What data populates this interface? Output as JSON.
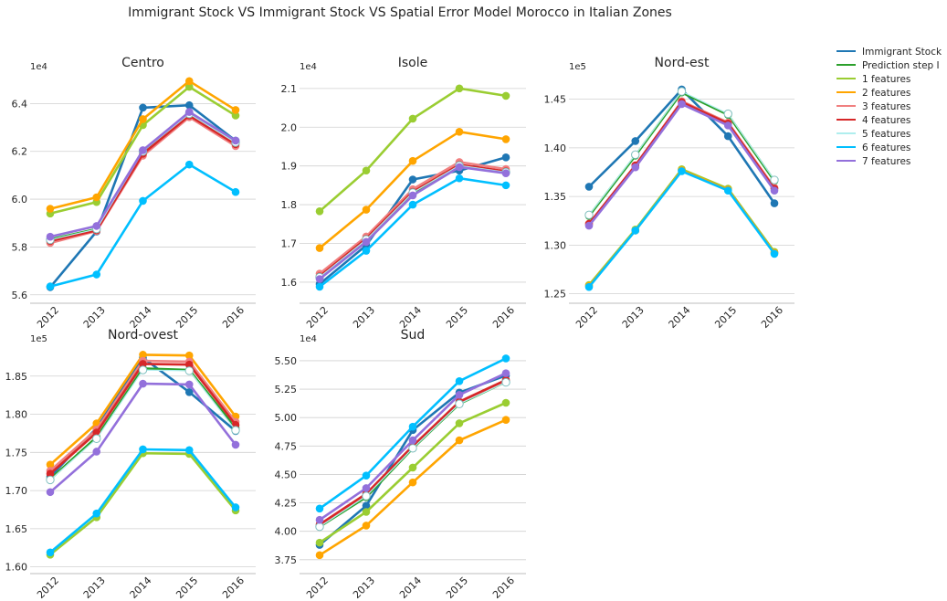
{
  "title": "Immigrant Stock VS Immigrant Stock VS Spatial Error Model Morocco in Italian Zones",
  "legend": {
    "placement": "outside-right",
    "entries": [
      {
        "label": "Immigrant Stock",
        "color": "#1f77b4"
      },
      {
        "label": "Prediction step I",
        "color": "#2ca02c"
      },
      {
        "label": "1 features",
        "color": "#9acd32"
      },
      {
        "label": "2 features",
        "color": "#ffa500"
      },
      {
        "label": "3 features",
        "color": "#f08080"
      },
      {
        "label": "4 features",
        "color": "#d62728"
      },
      {
        "label": "5 features",
        "color": "#afeeee"
      },
      {
        "label": "6 features",
        "color": "#00bfff"
      },
      {
        "label": "7 features",
        "color": "#9370db"
      }
    ]
  },
  "chart_data": [
    {
      "type": "line",
      "title": "Centro",
      "x": [
        "2012",
        "2013",
        "2014",
        "2015",
        "2016"
      ],
      "ylim": [
        5.58,
        6.52
      ],
      "yticks": [
        5.6,
        5.8,
        6.0,
        6.2,
        6.4
      ],
      "ytick_labels": [
        "5.6",
        "5.8",
        "6.0",
        "6.2",
        "6.4"
      ],
      "scale_label": "1e4",
      "grid": "horizontal",
      "series": [
        {
          "name": "Immigrant Stock",
          "color": "#1f77b4",
          "values": [
            5.632,
            5.865,
            6.383,
            6.393,
            6.245
          ]
        },
        {
          "name": "Prediction step I",
          "color": "#2ca02c",
          "values": [
            5.832,
            5.875,
            6.2,
            6.357,
            6.24
          ]
        },
        {
          "name": "1 features",
          "color": "#9acd32",
          "values": [
            5.94,
            5.988,
            6.31,
            6.47,
            6.35
          ]
        },
        {
          "name": "2 features",
          "color": "#ffa500",
          "values": [
            5.96,
            6.008,
            6.335,
            6.494,
            6.373
          ]
        },
        {
          "name": "3 features",
          "color": "#f08080",
          "values": [
            5.817,
            5.867,
            6.182,
            6.343,
            6.222
          ]
        },
        {
          "name": "4 features",
          "color": "#d62728",
          "values": [
            5.825,
            5.87,
            6.19,
            6.35,
            6.23
          ]
        },
        {
          "name": "5 features",
          "color": "#afeeee",
          "values": [
            5.83,
            5.875,
            6.2,
            6.357,
            6.237
          ]
        },
        {
          "name": "6 features",
          "color": "#00bfff",
          "values": [
            5.635,
            5.685,
            5.993,
            6.145,
            6.03
          ]
        },
        {
          "name": "7 features",
          "color": "#9370db",
          "values": [
            5.843,
            5.888,
            6.205,
            6.365,
            6.245
          ]
        }
      ]
    },
    {
      "type": "line",
      "title": "Isole",
      "x": [
        "2012",
        "2013",
        "2014",
        "2015",
        "2016"
      ],
      "ylim": [
        1.555,
        2.135
      ],
      "yticks": [
        1.6,
        1.7,
        1.8,
        1.9,
        2.0,
        2.1
      ],
      "ytick_labels": [
        "1.6",
        "1.7",
        "1.8",
        "1.9",
        "2.0",
        "2.1"
      ],
      "scale_label": "1e4",
      "grid": "horizontal",
      "series": [
        {
          "name": "Immigrant Stock",
          "color": "#1f77b4",
          "values": [
            1.595,
            1.695,
            1.865,
            1.888,
            1.922
          ]
        },
        {
          "name": "Prediction step I",
          "color": "#2ca02c",
          "values": [
            1.612,
            1.712,
            1.83,
            1.9,
            1.885
          ]
        },
        {
          "name": "1 features",
          "color": "#9acd32",
          "values": [
            1.783,
            1.888,
            2.022,
            2.1,
            2.081
          ]
        },
        {
          "name": "2 features",
          "color": "#ffa500",
          "values": [
            1.688,
            1.787,
            1.913,
            1.988,
            1.969
          ]
        },
        {
          "name": "3 features",
          "color": "#f08080",
          "values": [
            1.622,
            1.718,
            1.84,
            1.91,
            1.892
          ]
        },
        {
          "name": "4 features",
          "color": "#d62728",
          "values": [
            1.615,
            1.712,
            1.833,
            1.903,
            1.886
          ]
        },
        {
          "name": "5 features",
          "color": "#afeeee",
          "values": [
            1.613,
            1.71,
            1.831,
            1.901,
            1.884
          ]
        },
        {
          "name": "6 features",
          "color": "#00bfff",
          "values": [
            1.588,
            1.681,
            1.8,
            1.868,
            1.85
          ]
        },
        {
          "name": "7 features",
          "color": "#9370db",
          "values": [
            1.608,
            1.704,
            1.824,
            1.897,
            1.881
          ]
        }
      ]
    },
    {
      "type": "line",
      "title": "Nord-est",
      "x": [
        "2012",
        "2013",
        "2014",
        "2015",
        "2016"
      ],
      "ylim": [
        1.244,
        1.475
      ],
      "yticks": [
        1.25,
        1.3,
        1.35,
        1.4,
        1.45
      ],
      "ytick_labels": [
        "1.25",
        "1.30",
        "1.35",
        "1.40",
        "1.45"
      ],
      "scale_label": "1e5",
      "grid": "horizontal",
      "series": [
        {
          "name": "Immigrant Stock",
          "color": "#1f77b4",
          "values": [
            1.36,
            1.407,
            1.46,
            1.412,
            1.343
          ]
        },
        {
          "name": "Prediction step I",
          "color": "#2ca02c",
          "values": [
            1.33,
            1.392,
            1.457,
            1.434,
            1.366
          ]
        },
        {
          "name": "1 features",
          "color": "#9acd32",
          "values": [
            1.259,
            1.316,
            1.378,
            1.358,
            1.293
          ]
        },
        {
          "name": "2 features",
          "color": "#ffa500",
          "values": [
            1.258,
            1.315,
            1.377,
            1.357,
            1.292
          ]
        },
        {
          "name": "3 features",
          "color": "#f08080",
          "values": [
            1.321,
            1.382,
            1.448,
            1.426,
            1.359
          ]
        },
        {
          "name": "4 features",
          "color": "#d62728",
          "values": [
            1.322,
            1.382,
            1.447,
            1.425,
            1.358
          ]
        },
        {
          "name": "5 features",
          "color": "#afeeee",
          "values": [
            1.331,
            1.393,
            1.458,
            1.435,
            1.367
          ]
        },
        {
          "name": "6 features",
          "color": "#00bfff",
          "values": [
            1.257,
            1.315,
            1.376,
            1.356,
            1.291
          ]
        },
        {
          "name": "7 features",
          "color": "#9370db",
          "values": [
            1.32,
            1.38,
            1.445,
            1.423,
            1.356
          ]
        }
      ]
    },
    {
      "type": "line",
      "title": "Nord-ovest",
      "x": [
        "2012",
        "2013",
        "2014",
        "2015",
        "2016"
      ],
      "ylim": [
        1.596,
        1.888
      ],
      "yticks": [
        1.6,
        1.65,
        1.7,
        1.75,
        1.8,
        1.85
      ],
      "ytick_labels": [
        "1.60",
        "1.65",
        "1.70",
        "1.75",
        "1.80",
        "1.85"
      ],
      "scale_label": "1e5",
      "grid": "horizontal",
      "series": [
        {
          "name": "Immigrant Stock",
          "color": "#1f77b4",
          "values": [
            1.718,
            1.782,
            1.874,
            1.829,
            1.778
          ]
        },
        {
          "name": "Prediction step I",
          "color": "#2ca02c",
          "values": [
            1.715,
            1.77,
            1.86,
            1.858,
            1.782
          ]
        },
        {
          "name": "1 features",
          "color": "#9acd32",
          "values": [
            1.616,
            1.665,
            1.749,
            1.748,
            1.674
          ]
        },
        {
          "name": "2 features",
          "color": "#ffa500",
          "values": [
            1.734,
            1.788,
            1.878,
            1.877,
            1.797
          ]
        },
        {
          "name": "3 features",
          "color": "#f08080",
          "values": [
            1.726,
            1.78,
            1.87,
            1.869,
            1.79
          ]
        },
        {
          "name": "4 features",
          "color": "#d62728",
          "values": [
            1.722,
            1.776,
            1.866,
            1.865,
            1.786
          ]
        },
        {
          "name": "5 features",
          "color": "#afeeee",
          "values": [
            1.714,
            1.768,
            1.858,
            1.857,
            1.779
          ]
        },
        {
          "name": "6 features",
          "color": "#00bfff",
          "values": [
            1.619,
            1.67,
            1.754,
            1.753,
            1.678
          ]
        },
        {
          "name": "7 features",
          "color": "#9370db",
          "values": [
            1.698,
            1.751,
            1.84,
            1.839,
            1.76
          ]
        }
      ]
    },
    {
      "type": "line",
      "title": "Sud",
      "x": [
        "2012",
        "2013",
        "2014",
        "2015",
        "2016"
      ],
      "ylim": [
        3.66,
        5.62
      ],
      "yticks": [
        3.75,
        4.0,
        4.25,
        4.5,
        4.75,
        5.0,
        5.25,
        5.5
      ],
      "ytick_labels": [
        "3.75",
        "4.00",
        "4.25",
        "4.50",
        "4.75",
        "5.00",
        "5.25",
        "5.50"
      ],
      "scale_label": "1e4",
      "grid": "horizontal",
      "series": [
        {
          "name": "Immigrant Stock",
          "color": "#1f77b4",
          "values": [
            3.88,
            4.225,
            4.89,
            5.22,
            5.37
          ]
        },
        {
          "name": "Prediction step I",
          "color": "#2ca02c",
          "values": [
            4.04,
            4.3,
            4.73,
            5.12,
            5.315
          ]
        },
        {
          "name": "1 features",
          "color": "#9acd32",
          "values": [
            3.9,
            4.17,
            4.56,
            4.95,
            5.13
          ]
        },
        {
          "name": "2 features",
          "color": "#ffa500",
          "values": [
            3.79,
            4.05,
            4.43,
            4.8,
            4.98
          ]
        },
        {
          "name": "3 features",
          "color": "#f08080",
          "values": [
            4.05,
            4.32,
            4.74,
            5.13,
            5.32
          ]
        },
        {
          "name": "4 features",
          "color": "#d62728",
          "values": [
            4.06,
            4.33,
            4.75,
            5.14,
            5.33
          ]
        },
        {
          "name": "5 features",
          "color": "#afeeee",
          "values": [
            4.04,
            4.31,
            4.73,
            5.12,
            5.31
          ]
        },
        {
          "name": "6 features",
          "color": "#00bfff",
          "values": [
            4.2,
            4.49,
            4.92,
            5.32,
            5.52
          ]
        },
        {
          "name": "7 features",
          "color": "#9370db",
          "values": [
            4.1,
            4.38,
            4.8,
            5.2,
            5.39
          ]
        }
      ]
    }
  ]
}
